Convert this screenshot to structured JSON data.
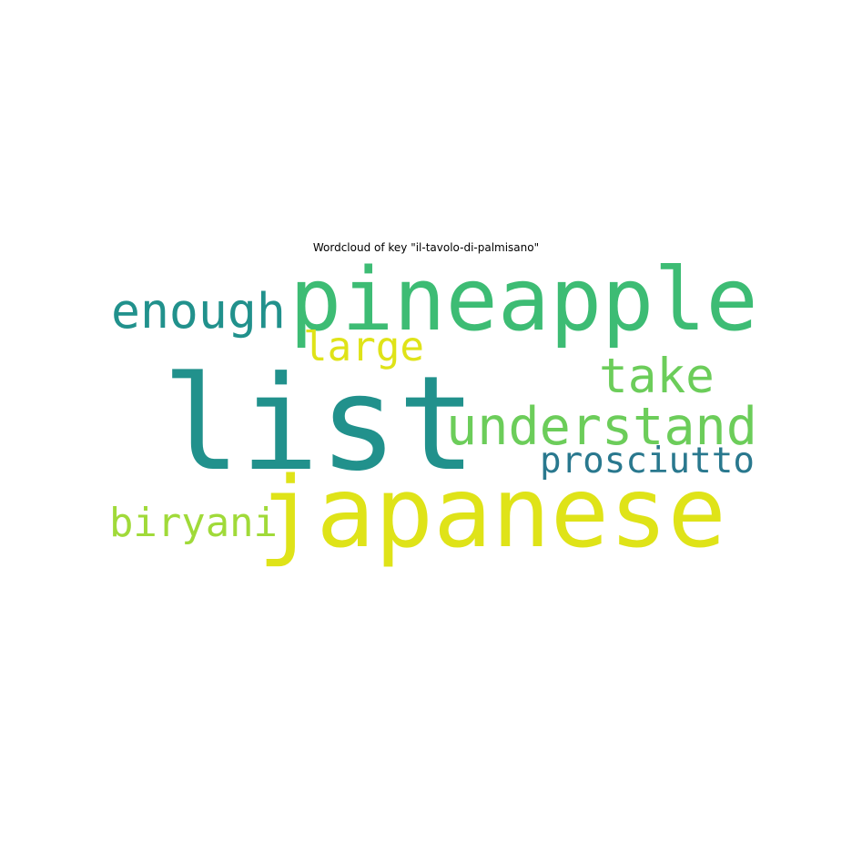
{
  "chart_data": {
    "type": "wordcloud",
    "title": "Wordcloud of key \"il-tavolo-di-palmisano\"",
    "words": [
      {
        "text": "list",
        "color": "#21918c"
      },
      {
        "text": "pineapple",
        "color": "#3dbc74"
      },
      {
        "text": "japanese",
        "color": "#dfe318"
      },
      {
        "text": "understand",
        "color": "#6ccd5a"
      },
      {
        "text": "enough",
        "color": "#21918c"
      },
      {
        "text": "take",
        "color": "#6ccd5a"
      },
      {
        "text": "large",
        "color": "#dfe318"
      },
      {
        "text": "biryani",
        "color": "#a0da39"
      },
      {
        "text": "prosciutto",
        "color": "#29788e"
      }
    ],
    "background": "#ffffff"
  }
}
